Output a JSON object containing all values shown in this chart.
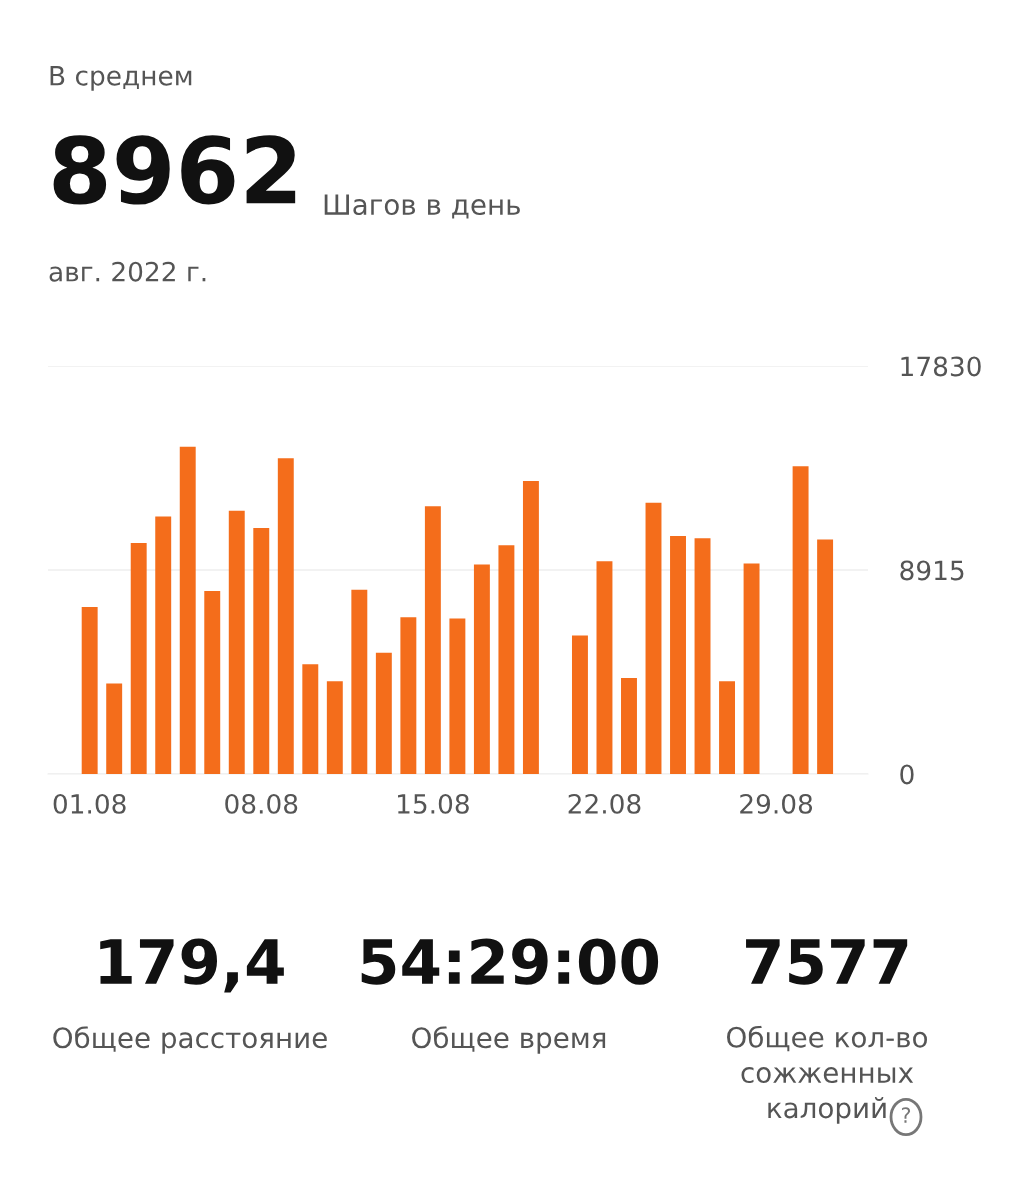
{
  "chart_data": {
    "type": "bar",
    "title": "В среднем",
    "categories": [
      "01.08",
      null,
      null,
      null,
      null,
      null,
      null,
      "08.08",
      null,
      null,
      null,
      null,
      null,
      null,
      "15.08",
      null,
      null,
      null,
      null,
      null,
      null,
      "22.08",
      null,
      null,
      null,
      null,
      null,
      null,
      "29.08",
      null,
      null
    ],
    "values": [
      7300,
      3950,
      10100,
      11250,
      14300,
      8000,
      11500,
      10750,
      13800,
      4800,
      4050,
      8050,
      5300,
      6850,
      11700,
      6800,
      9150,
      10000,
      12800,
      null,
      6050,
      9300,
      4200,
      11850,
      10400,
      10300,
      4050,
      9200,
      null,
      13450,
      10250
    ],
    "color": "#f46d1b",
    "ylim": [
      0,
      17830
    ],
    "yticks": [
      0,
      8915,
      17830
    ],
    "grid": "y",
    "annotations": [
      "8962",
      "Шагов в день",
      "авг. 2022 г.",
      "179,4",
      "Общее расстояние",
      "54:29:00",
      "Общее время",
      "7577",
      "Общее кол-во\nсожженных\nкалорий",
      "?"
    ]
  }
}
